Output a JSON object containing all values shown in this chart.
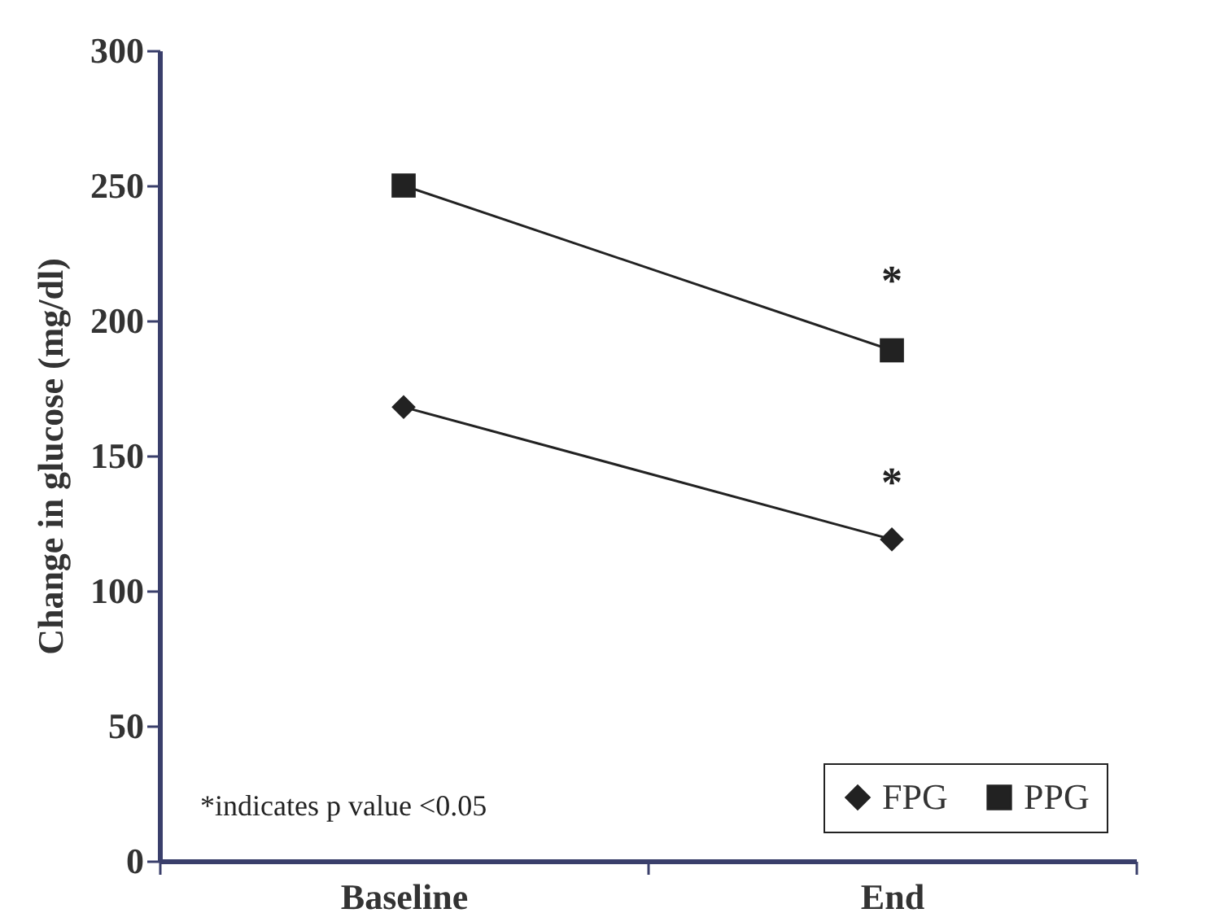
{
  "chart_data": {
    "type": "line",
    "ylabel": "Change in glucose (mg/dl)",
    "categories": [
      "Baseline",
      "End"
    ],
    "series": [
      {
        "name": "FPG",
        "color": "#222222",
        "marker": "diamond",
        "values": [
          168,
          119
        ]
      },
      {
        "name": "PPG",
        "color": "#222222",
        "marker": "square",
        "values": [
          250,
          189
        ]
      }
    ],
    "ylim": [
      0,
      300
    ],
    "yticks": [
      0,
      50,
      100,
      150,
      200,
      250,
      300
    ],
    "grid": false,
    "legend": "bottom right",
    "annotations": [
      "*",
      "*",
      "*indicates p value <0.05"
    ]
  }
}
